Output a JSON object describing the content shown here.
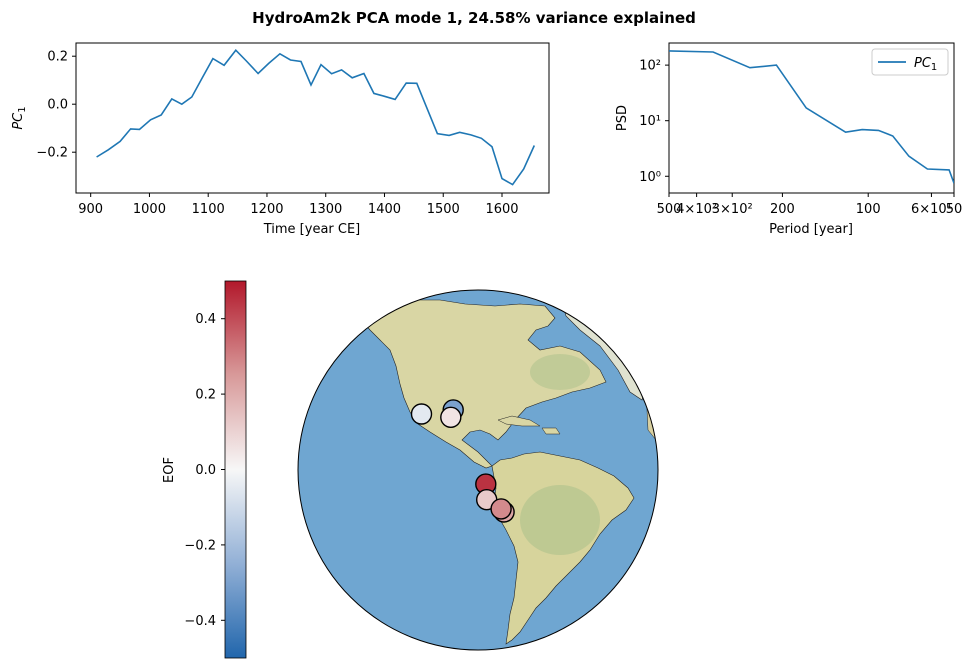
{
  "title": "HydroAm2k PCA mode 1, 24.58% variance explained",
  "chart_data": [
    {
      "type": "line",
      "panel": "pc-timeseries",
      "xlabel": "Time [year CE]",
      "ylabel": "PC1",
      "xlim": [
        875,
        1680
      ],
      "ylim": [
        -0.37,
        0.255
      ],
      "xticks": [
        900,
        1000,
        1100,
        1200,
        1300,
        1400,
        1500,
        1600
      ],
      "xtick_labels": [
        "900",
        "1000",
        "1100",
        "1200",
        "1300",
        "1400",
        "1500",
        "1600"
      ],
      "yticks": [
        0.2,
        0.0,
        -0.2
      ],
      "ytick_labels": [
        "0.2",
        "0.0",
        "−0.2"
      ],
      "color": "#1f77b4",
      "series": [
        {
          "x": [
            910,
            930,
            950,
            968,
            983,
            1002,
            1020,
            1038,
            1055,
            1072,
            1090,
            1108,
            1127,
            1147,
            1165,
            1185,
            1203,
            1222,
            1240,
            1258,
            1275,
            1292,
            1310,
            1327,
            1345,
            1365,
            1382,
            1400,
            1418,
            1437,
            1455,
            1472,
            1490,
            1510,
            1528,
            1547,
            1565,
            1583,
            1600,
            1618,
            1637,
            1655
          ],
          "y": [
            -0.22,
            -0.19,
            -0.155,
            -0.103,
            -0.105,
            -0.065,
            -0.045,
            0.022,
            0.0,
            0.03,
            0.11,
            0.19,
            0.162,
            0.225,
            0.18,
            0.128,
            0.17,
            0.21,
            0.184,
            0.178,
            0.08,
            0.165,
            0.127,
            0.143,
            0.11,
            0.128,
            0.045,
            0.033,
            0.02,
            0.088,
            0.087,
            -0.015,
            -0.123,
            -0.13,
            -0.117,
            -0.128,
            -0.142,
            -0.177,
            -0.31,
            -0.335,
            -0.27,
            -0.172
          ]
        }
      ]
    },
    {
      "type": "line",
      "panel": "psd",
      "xlabel": "Period [year]",
      "ylabel": "PSD",
      "xscale": "log-reversed",
      "yscale": "log",
      "xlim": [
        500,
        50
      ],
      "ylim": [
        0.5,
        250
      ],
      "xtick_labels": [
        "500",
        "4×10²",
        "3×10²",
        "200",
        "100",
        "6×10¹",
        "50"
      ],
      "xticks": [
        500,
        400,
        300,
        200,
        100,
        60,
        50
      ],
      "yticks": [
        100,
        10,
        1
      ],
      "ytick_labels": [
        "10²",
        "10¹",
        "10⁰"
      ],
      "legend": "top-right",
      "color": "#1f77b4",
      "series": [
        {
          "name": "PC1",
          "x": [
            500,
            350,
            260,
            210,
            165,
            120,
            105,
            92,
            82,
            72,
            62,
            52,
            50
          ],
          "y": [
            180,
            172,
            90,
            100,
            17,
            6.2,
            6.9,
            6.7,
            5.3,
            2.3,
            1.35,
            1.3,
            0.75
          ]
        }
      ]
    }
  ],
  "map": {
    "colorbar_label": "EOF",
    "colorbar_ticks": [
      0.4,
      0.2,
      0.0,
      -0.2,
      -0.4
    ],
    "colorbar_tick_labels": [
      "0.4",
      "0.2",
      "0.0",
      "−0.2",
      "−0.4"
    ],
    "colorbar_range": [
      -0.5,
      0.5
    ],
    "ocean_color": "#6fa6d1",
    "sites": [
      {
        "name": "site-1",
        "lon": -99.5,
        "lat": 20.0,
        "eof": -0.05
      },
      {
        "name": "site-2",
        "lon": -88.5,
        "lat": 21.5,
        "eof": -0.3
      },
      {
        "name": "site-3",
        "lon": -89.2,
        "lat": 19.0,
        "eof": 0.05
      },
      {
        "name": "site-4",
        "lon": -77.5,
        "lat": -2.5,
        "eof": 0.45
      },
      {
        "name": "site-5",
        "lon": -77.2,
        "lat": -7.5,
        "eof": 0.12
      },
      {
        "name": "site-6",
        "lon": -71.5,
        "lat": -11.5,
        "eof": 0.22
      },
      {
        "name": "site-7",
        "lon": -72.5,
        "lat": -10.5,
        "eof": 0.28
      }
    ]
  }
}
